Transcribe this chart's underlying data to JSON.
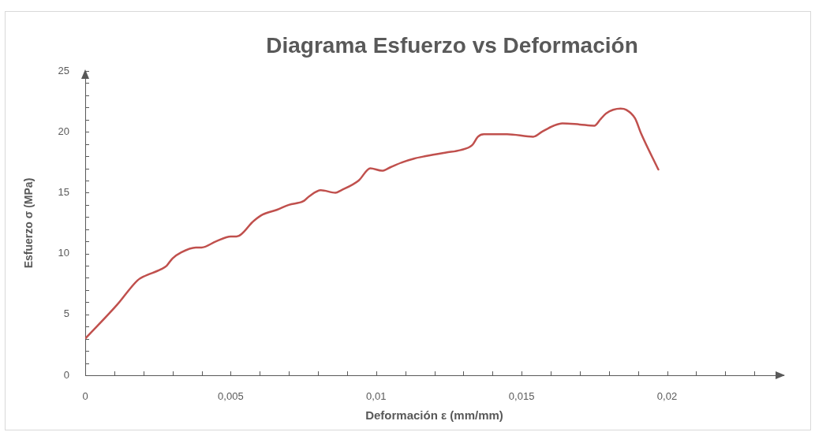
{
  "chart_data": {
    "type": "line",
    "title": "Diagrama Esfuerzo vs Deformación",
    "xlabel": "Deformación ε (mm/mm)",
    "ylabel": "Esfuerzo σ (MPa)",
    "x": [
      0,
      0.0011,
      0.0018,
      0.002,
      0.0026,
      0.0028,
      0.003,
      0.0033,
      0.0038,
      0.004,
      0.0045,
      0.005,
      0.0052,
      0.0058,
      0.0061,
      0.0066,
      0.007,
      0.0075,
      0.0077,
      0.0081,
      0.0086,
      0.0088,
      0.0094,
      0.0098,
      0.0102,
      0.0105,
      0.0109,
      0.0113,
      0.0117,
      0.0124,
      0.0129,
      0.0133,
      0.0135,
      0.0137,
      0.0145,
      0.0154,
      0.0157,
      0.0161,
      0.0164,
      0.017,
      0.0175,
      0.0177,
      0.0179,
      0.0184,
      0.0186,
      0.0189,
      0.0191,
      0.0197
    ],
    "values": [
      3.0,
      5.8,
      7.8,
      8.1,
      8.7,
      9.0,
      9.6,
      10.1,
      10.5,
      10.5,
      11.0,
      11.4,
      11.4,
      12.7,
      13.2,
      13.6,
      14.0,
      14.3,
      14.7,
      15.2,
      15.0,
      15.2,
      16.0,
      17.0,
      16.8,
      17.1,
      17.5,
      17.8,
      18.0,
      18.3,
      18.5,
      18.9,
      19.6,
      19.8,
      19.8,
      19.6,
      20.0,
      20.5,
      20.7,
      20.6,
      20.5,
      21.0,
      21.5,
      21.9,
      21.8,
      21.1,
      19.9,
      16.9
    ],
    "color": "#c0504d",
    "xlim": [
      0,
      0.024
    ],
    "xticks": [
      0,
      {
        "value": 0.001,
        "label": null
      },
      {
        "value": 0.002,
        "label": null
      },
      {
        "value": 0.003,
        "label": null
      },
      {
        "value": 0.004,
        "label": null
      },
      {
        "value": 0.005,
        "label": "0,005"
      },
      {
        "value": 0.006,
        "label": null
      },
      {
        "value": 0.007,
        "label": null
      },
      {
        "value": 0.008,
        "label": null
      },
      {
        "value": 0.009,
        "label": null
      },
      {
        "value": 0.01,
        "label": "0,01"
      },
      {
        "value": 0.011,
        "label": null
      },
      {
        "value": 0.012,
        "label": null
      },
      {
        "value": 0.013,
        "label": null
      },
      {
        "value": 0.014,
        "label": null
      },
      {
        "value": 0.015,
        "label": "0,015"
      },
      {
        "value": 0.016,
        "label": null
      },
      {
        "value": 0.017,
        "label": null
      },
      {
        "value": 0.018,
        "label": null
      },
      {
        "value": 0.019,
        "label": null
      },
      {
        "value": 0.02,
        "label": "0,02"
      },
      {
        "value": 0.021,
        "label": null
      },
      {
        "value": 0.022,
        "label": null
      },
      {
        "value": 0.023,
        "label": null
      }
    ],
    "ylim": [
      0,
      25
    ],
    "yticks": [
      0,
      {
        "value": 1,
        "label": null
      },
      {
        "value": 2,
        "label": null
      },
      {
        "value": 3,
        "label": null
      },
      {
        "value": 4,
        "label": null
      },
      5,
      {
        "value": 6,
        "label": null
      },
      {
        "value": 7,
        "label": null
      },
      {
        "value": 8,
        "label": null
      },
      {
        "value": 9,
        "label": null
      },
      10,
      {
        "value": 11,
        "label": null
      },
      {
        "value": 12,
        "label": null
      },
      {
        "value": 13,
        "label": null
      },
      {
        "value": 14,
        "label": null
      },
      15,
      {
        "value": 16,
        "label": null
      },
      {
        "value": 17,
        "label": null
      },
      {
        "value": 18,
        "label": null
      },
      {
        "value": 19,
        "label": null
      },
      20,
      {
        "value": 21,
        "label": null
      },
      {
        "value": 22,
        "label": null
      },
      {
        "value": 23,
        "label": null
      },
      {
        "value": 24,
        "label": null
      },
      25
    ],
    "grid": false,
    "legend": false,
    "marker": "none",
    "line_style": "solid"
  }
}
